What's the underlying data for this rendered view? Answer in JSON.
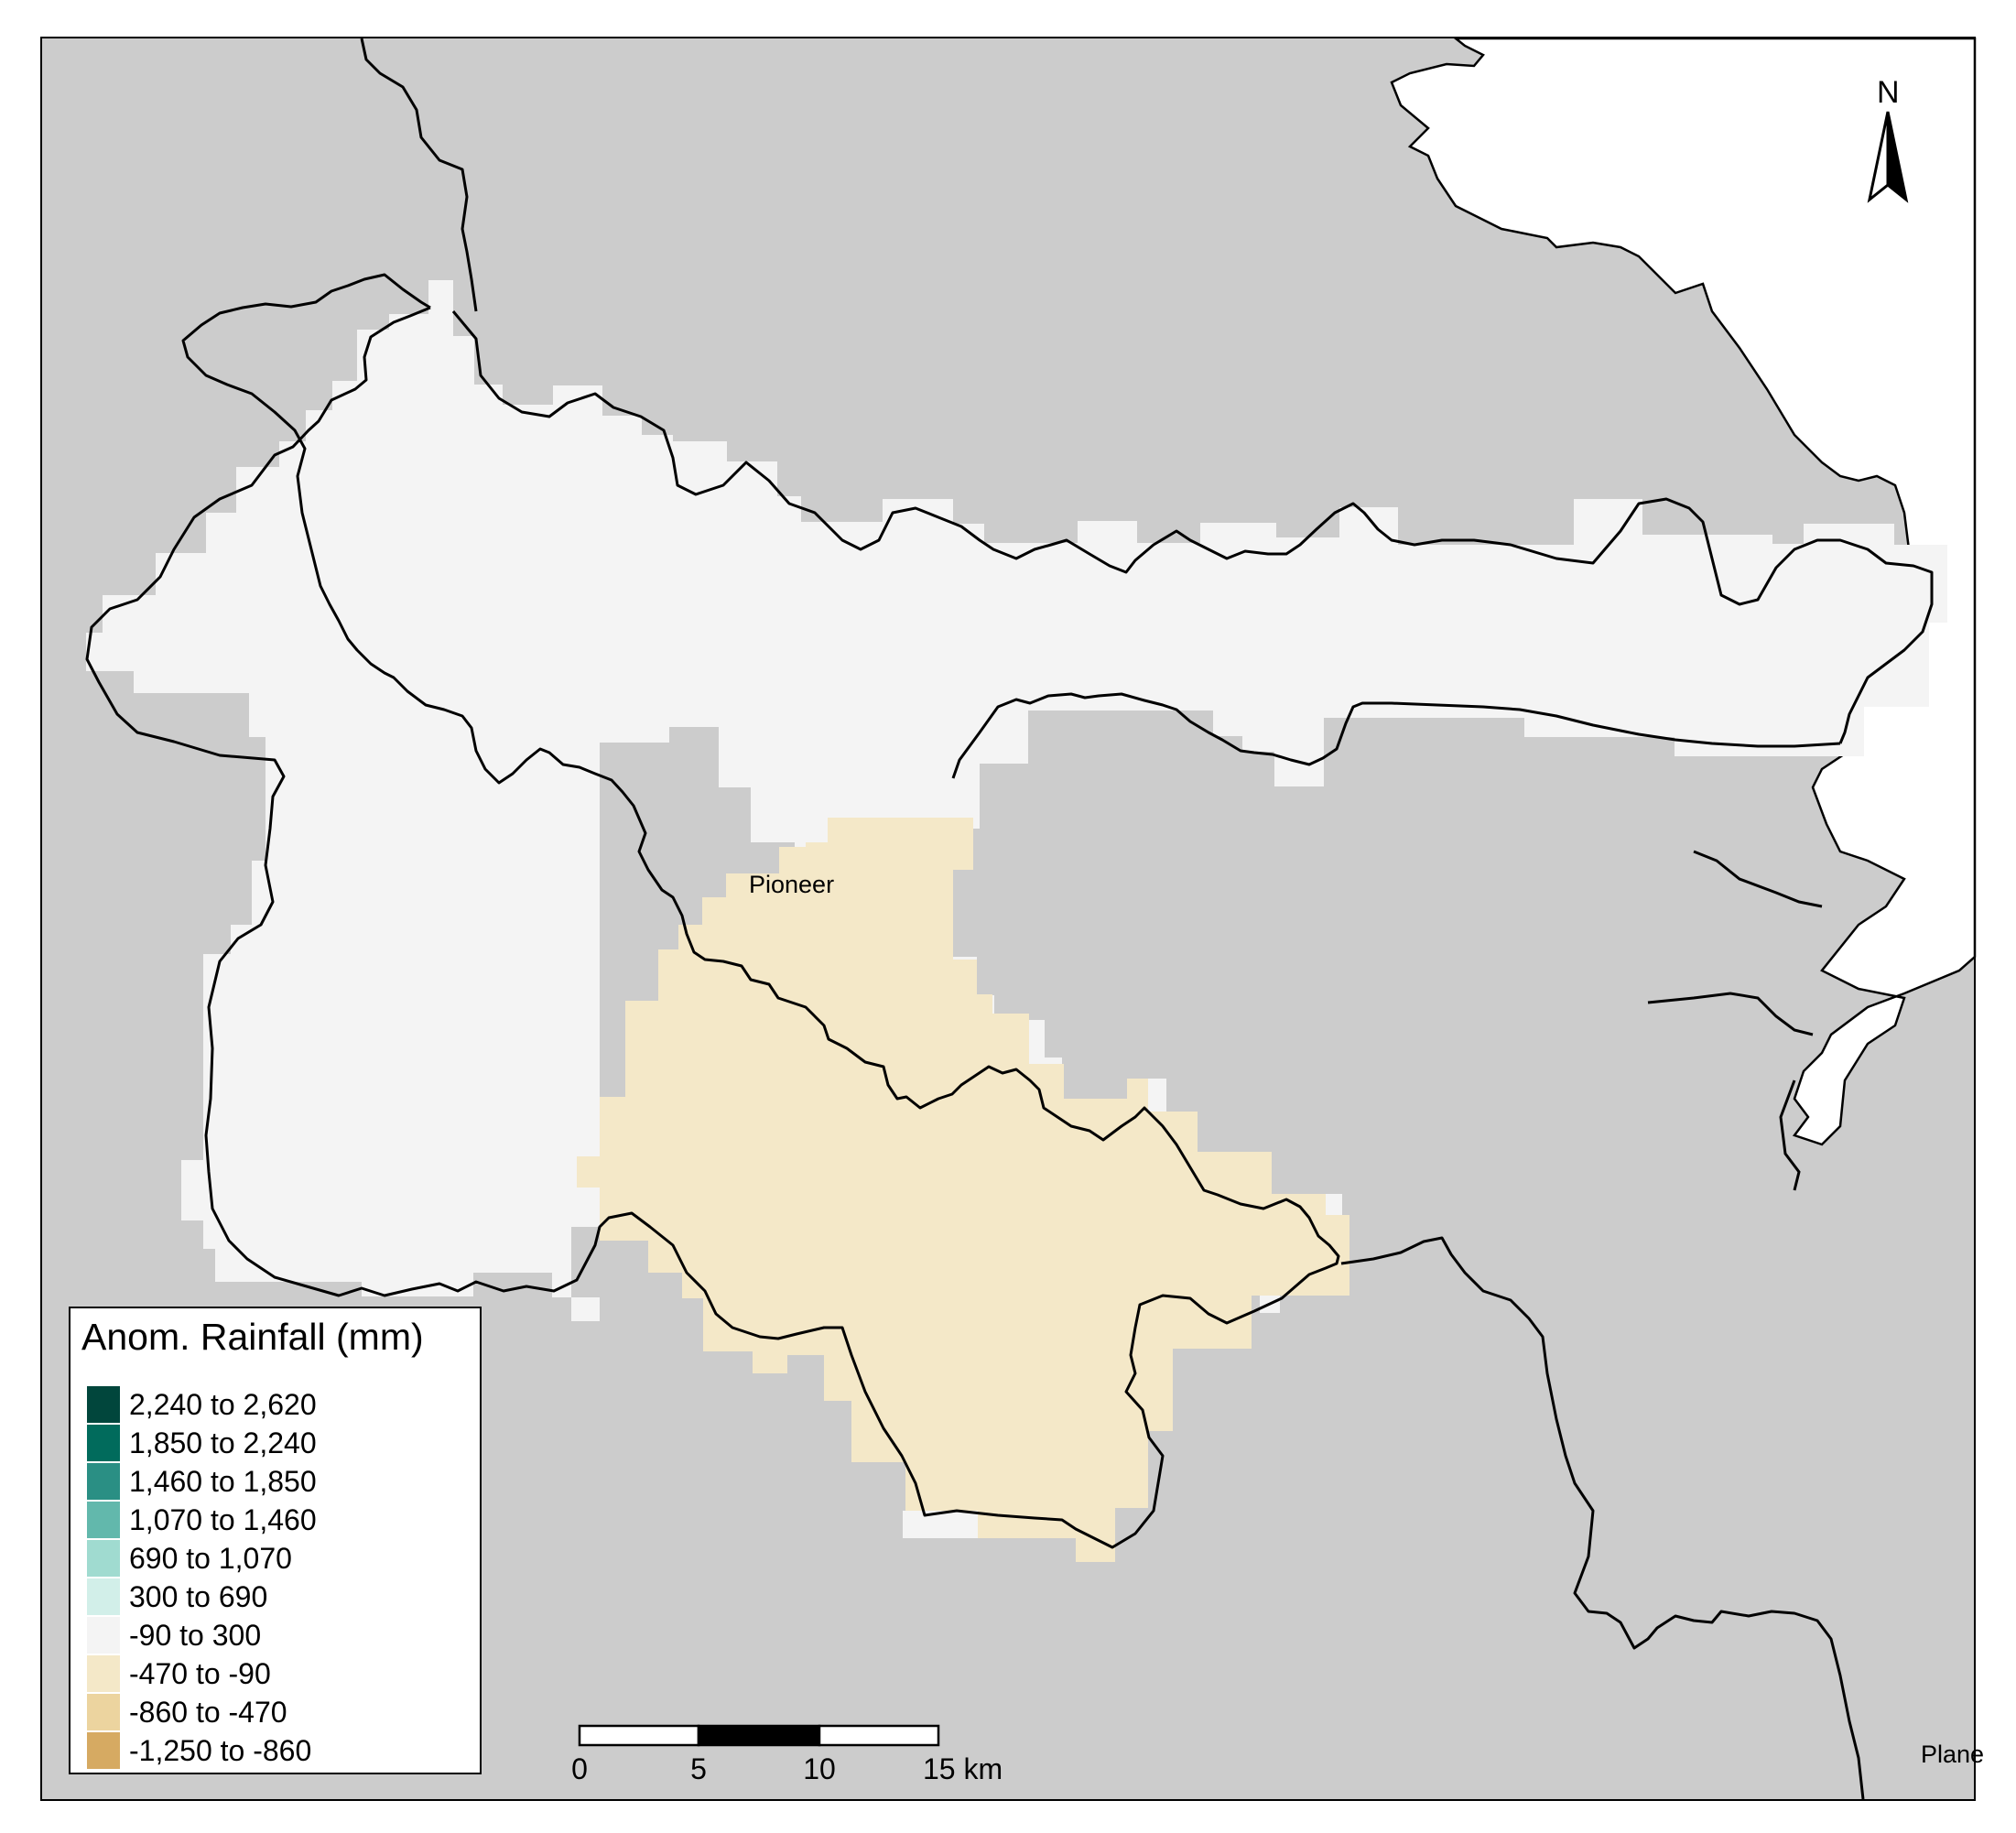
{
  "map": {
    "place_label": "Pioneer",
    "partial_label": "Plane",
    "north_label": "N",
    "colors": {
      "background_land": "#cccccc",
      "sea": "#ffffff",
      "catchment_fill": "#f4f4f4",
      "boundary": "#000000"
    }
  },
  "legend": {
    "title": "Anom. Rainfall (mm)",
    "items": [
      {
        "label": "2,240 to 2,620",
        "color": "#01463c"
      },
      {
        "label": "1,850 to 2,240",
        "color": "#016b5c"
      },
      {
        "label": "1,460 to 1,850",
        "color": "#2a8f84"
      },
      {
        "label": "1,070 to 1,460",
        "color": "#62b8ac"
      },
      {
        "label": "690 to 1,070",
        "color": "#a0dbd0"
      },
      {
        "label": "300 to 690",
        "color": "#d2efe9"
      },
      {
        "label": "-90 to 300",
        "color": "#f4f4f4"
      },
      {
        "label": "-470 to -90",
        "color": "#f4e8c8"
      },
      {
        "label": "-860 to -470",
        "color": "#ecd49f"
      },
      {
        "label": "-1,250 to -860",
        "color": "#d6aa62"
      }
    ]
  },
  "scalebar": {
    "ticks": [
      "0",
      "5",
      "10",
      "15 km"
    ]
  }
}
